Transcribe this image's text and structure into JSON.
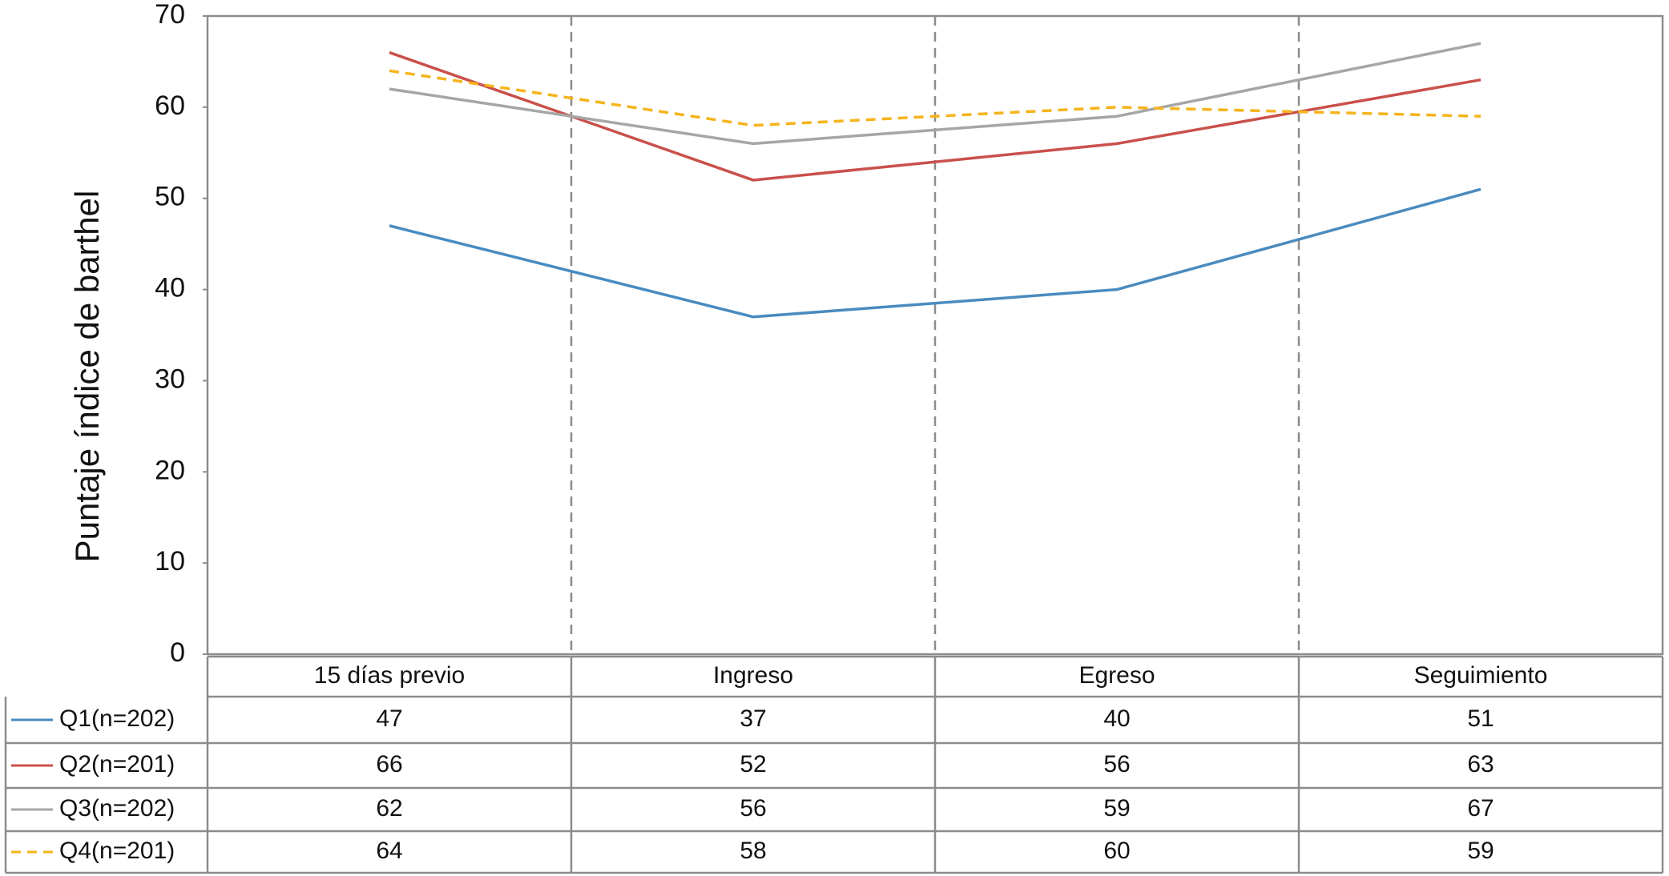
{
  "chart_data": {
    "type": "line",
    "y_label": "Puntaje índice de barthel",
    "categories": [
      "15 días previo",
      "Ingreso",
      "Egreso",
      "Seguimiento"
    ],
    "series": [
      {
        "name": "Q1(n=202)",
        "color": "#4a8bbf",
        "values": [
          47,
          37,
          40,
          51
        ]
      },
      {
        "name": "Q2(n=201)",
        "color": "#c9504b",
        "values": [
          66,
          52,
          56,
          63
        ]
      },
      {
        "name": "Q3(n=202)",
        "color": "#a6a6a6",
        "values": [
          62,
          56,
          59,
          67
        ]
      },
      {
        "name": "Q4(n=201)",
        "color": "#f5b41c",
        "dashed": true,
        "values": [
          64,
          58,
          60,
          59
        ]
      }
    ],
    "ylim": [
      0,
      70
    ],
    "yticks": [
      0,
      10,
      20,
      30,
      40,
      50,
      60,
      70
    ]
  }
}
